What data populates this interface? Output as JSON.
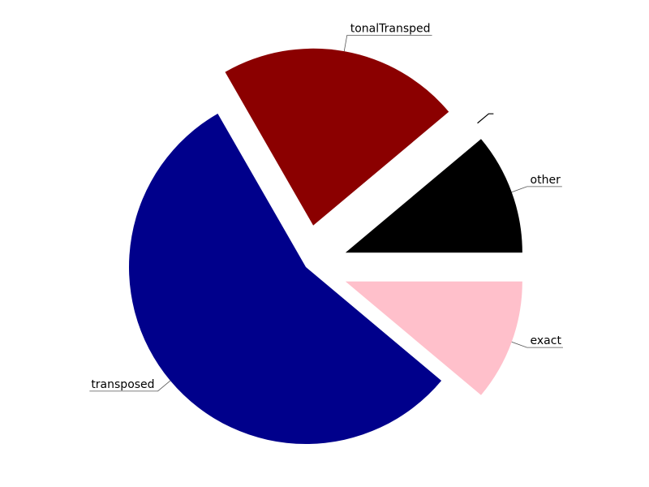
{
  "chart_data": {
    "type": "pie",
    "title": "",
    "slices": [
      {
        "label": "exact",
        "value": 11.1,
        "color": "#FFC0CB",
        "exploded": true
      },
      {
        "label": "transposed",
        "value": 55.6,
        "color": "#00008B",
        "exploded": false
      },
      {
        "label": "tonalTransped",
        "value": 22.2,
        "color": "#8B0000",
        "exploded": true
      },
      {
        "label": "",
        "value": 0.0,
        "color": "#000000",
        "exploded": true
      },
      {
        "label": "other",
        "value": 11.1,
        "color": "#000000",
        "exploded": true
      }
    ]
  }
}
